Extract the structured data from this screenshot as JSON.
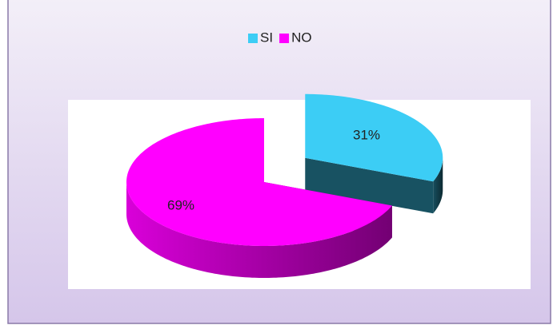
{
  "chart_data": {
    "type": "pie3d",
    "categories": [
      "SI",
      "NO"
    ],
    "values": [
      31,
      69
    ],
    "value_labels": [
      "31%",
      "69%"
    ],
    "colors": [
      "#3ccdf5",
      "#ff00ff"
    ],
    "legend": "top"
  }
}
